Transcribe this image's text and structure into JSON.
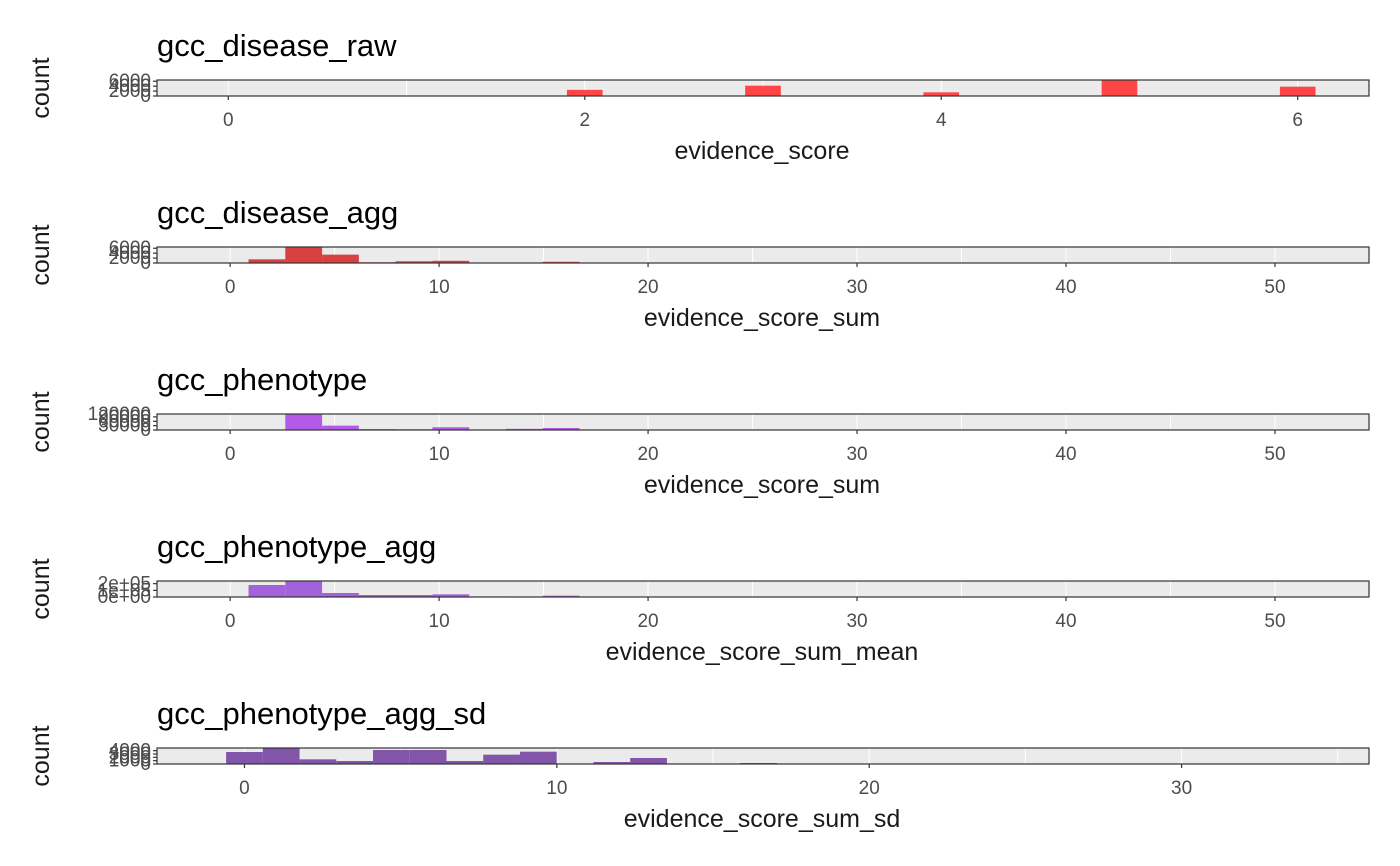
{
  "chart_data": [
    {
      "type": "bar",
      "title": "gcc_disease_raw",
      "xlabel": "evidence_score",
      "ylabel": "count",
      "color": "#ff4545",
      "xlim": [
        -0.4,
        6.4
      ],
      "xticks": [
        0,
        2,
        4,
        6
      ],
      "xtick_labels": [
        "0",
        "2",
        "4",
        "6"
      ],
      "ylim": [
        0,
        6500
      ],
      "yticks": [
        0,
        2000,
        4000,
        6000
      ],
      "ytick_labels": [
        "0",
        "2000",
        "4000",
        "6000"
      ],
      "bar_width": 0.2,
      "x": [
        2,
        3,
        4,
        5,
        6
      ],
      "values": [
        2500,
        4200,
        1500,
        6600,
        3800
      ],
      "grid": true
    },
    {
      "type": "bar",
      "title": "gcc_disease_agg",
      "xlabel": "evidence_score_sum",
      "ylabel": "count",
      "color": "#d94141",
      "xlim": [
        -3.5,
        54.5
      ],
      "xticks": [
        0,
        10,
        20,
        30,
        40,
        50
      ],
      "xtick_labels": [
        "0",
        "10",
        "20",
        "30",
        "40",
        "50"
      ],
      "ylim": [
        0,
        6500
      ],
      "yticks": [
        0,
        2000,
        4000,
        6000
      ],
      "ytick_labels": [
        "0",
        "2000",
        "4000",
        "6000"
      ],
      "bar_width": 1.76,
      "x": [
        1.76,
        3.52,
        5.28,
        7.04,
        8.8,
        10.56,
        12.32,
        14.08,
        15.84,
        17.6,
        19.36,
        21.12,
        22.88
      ],
      "values": [
        1500,
        7000,
        3400,
        300,
        700,
        900,
        200,
        150,
        500,
        100,
        80,
        50,
        80
      ],
      "grid": true
    },
    {
      "type": "bar",
      "title": "gcc_phenotype",
      "xlabel": "evidence_score_sum",
      "ylabel": "count",
      "color": "#b45ae8",
      "xlim": [
        -3.5,
        54.5
      ],
      "xticks": [
        0,
        10,
        20,
        30,
        40,
        50
      ],
      "xtick_labels": [
        "0",
        "10",
        "20",
        "30",
        "40",
        "50"
      ],
      "ylim": [
        0,
        110000
      ],
      "yticks": [
        0,
        30000,
        60000,
        90000
      ],
      "ytick_labels": [
        "0",
        "30000",
        "60000",
        "90000",
        "120000"
      ],
      "ytick_label_positions": [
        0,
        30000,
        60000,
        90000,
        120000
      ],
      "bar_width": 1.76,
      "x": [
        1.76,
        3.52,
        5.28,
        7.04,
        8.8,
        10.56,
        12.32,
        14.08,
        15.84,
        17.6,
        19.36
      ],
      "values": [
        3000,
        110000,
        30000,
        6000,
        5000,
        19000,
        2000,
        8000,
        14000,
        3000,
        1000
      ],
      "grid": true
    },
    {
      "type": "bar",
      "title": "gcc_phenotype_agg",
      "xlabel": "evidence_score_sum_mean",
      "ylabel": "count",
      "color": "#a262d9",
      "xlim": [
        -3.5,
        54.5
      ],
      "xticks": [
        0,
        10,
        20,
        30,
        40,
        50
      ],
      "xtick_labels": [
        "0",
        "10",
        "20",
        "30",
        "40",
        "50"
      ],
      "ylim": [
        0,
        240000
      ],
      "yticks": [
        0,
        100000,
        200000
      ],
      "ytick_labels": [
        "0e+00",
        "1e+05",
        "2e+05"
      ],
      "bar_width": 1.76,
      "x": [
        1.76,
        3.52,
        5.28,
        7.04,
        8.8,
        10.56,
        12.32,
        14.08,
        15.84
      ],
      "values": [
        180000,
        240000,
        60000,
        30000,
        30000,
        40000,
        8000,
        6000,
        20000
      ],
      "grid": true
    },
    {
      "type": "bar",
      "title": "gcc_phenotype_agg_sd",
      "xlabel": "evidence_score_sum_sd",
      "ylabel": "count",
      "color": "#8255a8",
      "xlim": [
        -2.8,
        36.0
      ],
      "xticks": [
        0,
        10,
        20,
        30
      ],
      "xtick_labels": [
        "0",
        "10",
        "20",
        "30"
      ],
      "ylim": [
        0,
        4800
      ],
      "yticks": [
        0,
        1000,
        2000,
        3000,
        4000
      ],
      "ytick_labels": [
        "0",
        "1000",
        "2000",
        "3000",
        "4000"
      ],
      "bar_width": 1.176,
      "x": [
        0,
        1.176,
        2.352,
        3.528,
        4.704,
        5.88,
        7.056,
        8.232,
        9.408,
        10.584,
        11.76,
        12.936,
        14.112,
        15.288,
        16.464
      ],
      "values": [
        3600,
        4900,
        1400,
        900,
        4200,
        4200,
        900,
        2800,
        3700,
        0,
        600,
        1800,
        0,
        0,
        300
      ],
      "grid": true
    }
  ]
}
